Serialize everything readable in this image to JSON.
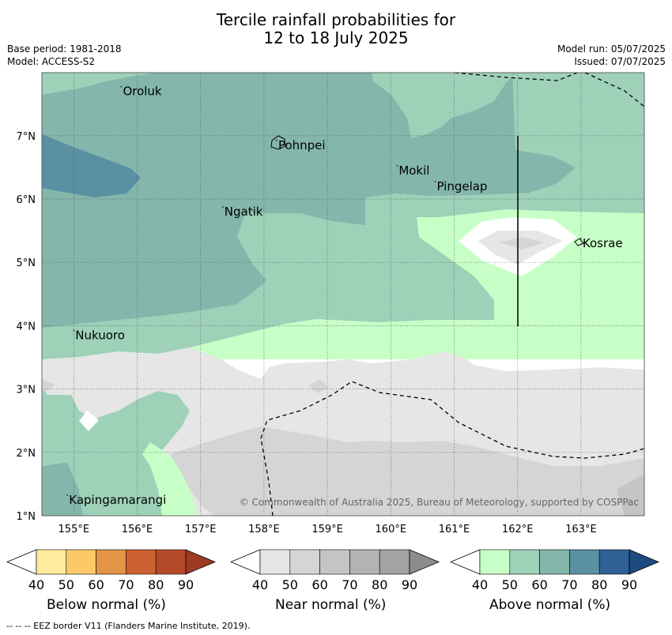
{
  "header": {
    "title_line1": "Tercile rainfall probabilities for",
    "title_line2": "12 to 18 July 2025",
    "base_period": "Base period: 1981-2018",
    "model": "Model: ACCESS-S2",
    "model_run": "Model run: 05/07/2025",
    "issued": "Issued: 07/07/2025"
  },
  "map": {
    "lat_labels": [
      "7°N",
      "6°N",
      "5°N",
      "4°N",
      "3°N",
      "2°N",
      "1°N"
    ],
    "lon_labels": [
      "155°E",
      "156°E",
      "157°E",
      "158°E",
      "159°E",
      "160°E",
      "161°E",
      "162°E",
      "163°E"
    ],
    "places": [
      {
        "name": "Oroluk",
        "lon": 155.75,
        "lat": 7.7
      },
      {
        "name": "Pohnpei",
        "lon": 158.2,
        "lat": 6.85
      },
      {
        "name": "Mokil",
        "lon": 160.1,
        "lat": 6.45
      },
      {
        "name": "Pingelap",
        "lon": 160.7,
        "lat": 6.2
      },
      {
        "name": "Ngatik",
        "lon": 157.35,
        "lat": 5.8
      },
      {
        "name": "Kosrae",
        "lon": 163.0,
        "lat": 5.3
      },
      {
        "name": "Nukuoro",
        "lon": 155.0,
        "lat": 3.85
      },
      {
        "name": "Kapingamarangi",
        "lon": 154.9,
        "lat": 1.25
      }
    ],
    "copyright": "© Commonwealth of Australia 2025, Bureau of Meteorology, supported by COSPPac"
  },
  "colorbars": [
    {
      "label": "Below normal (%)",
      "ticks": [
        "40",
        "50",
        "60",
        "70",
        "80",
        "90"
      ],
      "colors": [
        "#ffeb9c",
        "#fdc967",
        "#e39446",
        "#cd6030",
        "#b54a2a",
        "#9e3a22"
      ]
    },
    {
      "label": "Near normal (%)",
      "ticks": [
        "40",
        "50",
        "60",
        "70",
        "80",
        "90"
      ],
      "colors": [
        "#e6e6e6",
        "#d5d5d5",
        "#c4c4c4",
        "#b3b3b3",
        "#a3a3a3",
        "#8c8c8c"
      ]
    },
    {
      "label": "Above normal (%)",
      "ticks": [
        "40",
        "50",
        "60",
        "70",
        "80",
        "90"
      ],
      "colors": [
        "#c7ffc7",
        "#9ed1b8",
        "#84b6ac",
        "#5990a2",
        "#2f6196",
        "#1d4a80"
      ]
    }
  ],
  "footnote": "--  --  -- EEZ border V11 (Flanders Marine Institute, 2019)."
}
